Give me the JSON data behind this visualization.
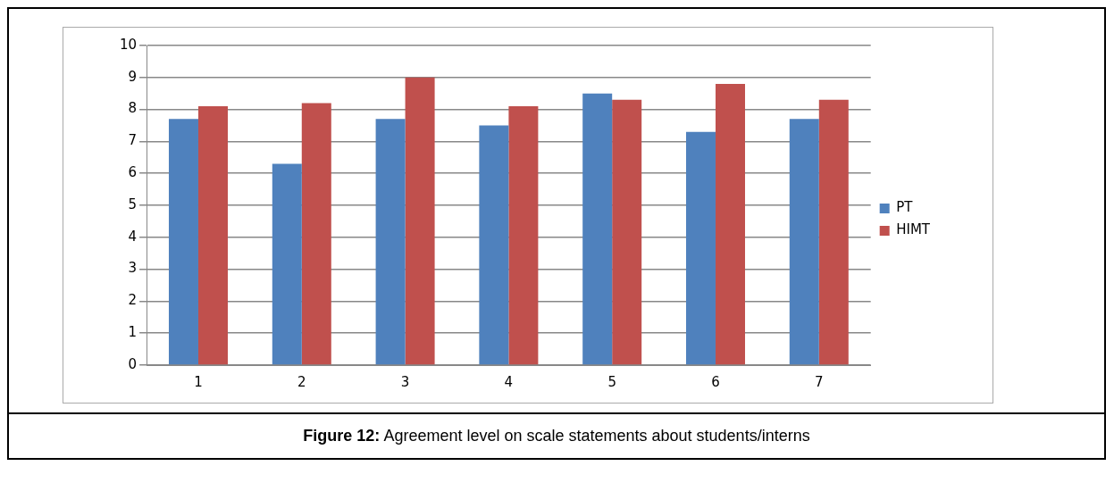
{
  "chart_data": {
    "type": "bar",
    "categories": [
      "1",
      "2",
      "3",
      "4",
      "5",
      "6",
      "7"
    ],
    "series": [
      {
        "name": "PT",
        "color": "#4f81bd",
        "values": [
          7.7,
          6.3,
          7.7,
          7.5,
          8.5,
          7.3,
          7.7
        ]
      },
      {
        "name": "HIMT",
        "color": "#c0504d",
        "values": [
          8.1,
          8.2,
          9.0,
          8.1,
          8.3,
          8.8,
          8.3
        ]
      }
    ],
    "ylim": [
      0,
      10
    ],
    "yticks": [
      0,
      1,
      2,
      3,
      4,
      5,
      6,
      7,
      8,
      9,
      10
    ],
    "grid": "y",
    "legend": "right",
    "annotations": [
      "Figure 12: Agreement level on scale statements about students/interns"
    ]
  }
}
